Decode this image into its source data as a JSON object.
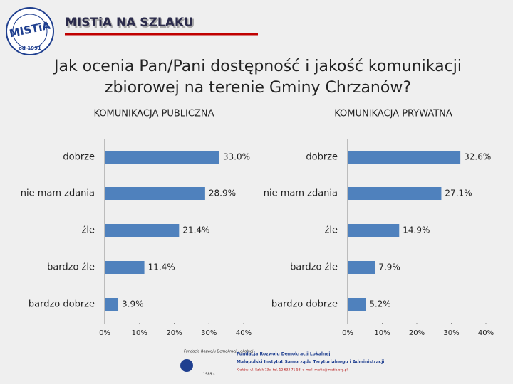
{
  "header": {
    "logo": "MISTiA",
    "logo_year": "od 1991",
    "brand": "MISTiA NA SZLAKU"
  },
  "title_lines": [
    "Jak ocenia Pan/Pani dostępność i jakość komunikacji",
    "zbiorowej na terenie Gminy Chrzanów?"
  ],
  "chart_data": [
    {
      "type": "bar",
      "orientation": "horizontal",
      "title": "KOMUNIKACJA PUBLICZNA",
      "color": "#4f81bd",
      "categories": [
        "dobrze",
        "nie mam zdania",
        "źle",
        "bardzo źle",
        "bardzo dobrze"
      ],
      "values": [
        33.0,
        28.9,
        21.4,
        11.4,
        3.9
      ],
      "value_labels": [
        "33.0%",
        "28.9%",
        "21.4%",
        "11.4%",
        "3.9%"
      ],
      "xlim": [
        0,
        40
      ],
      "xticks": [
        {
          "value": 0,
          "label": "0%"
        },
        {
          "value": 10,
          "label": "10%"
        },
        {
          "value": 20,
          "label": "20%"
        },
        {
          "value": 30,
          "label": "30%"
        },
        {
          "value": 40,
          "label": "40%"
        }
      ]
    },
    {
      "type": "bar",
      "orientation": "horizontal",
      "title": "KOMUNIKACJA PRYWATNA",
      "color": "#4f81bd",
      "categories": [
        "dobrze",
        "nie mam zdania",
        "źle",
        "bardzo źle",
        "bardzo dobrze"
      ],
      "values": [
        32.6,
        27.1,
        14.9,
        7.9,
        5.2
      ],
      "value_labels": [
        "32.6%",
        "27.1%",
        "14.9%",
        "7.9%",
        "5.2%"
      ],
      "xlim": [
        0,
        40
      ],
      "xticks": [
        {
          "value": 0,
          "label": "0%"
        },
        {
          "value": 10,
          "label": "10%"
        },
        {
          "value": 20,
          "label": "20%"
        },
        {
          "value": 30,
          "label": "30%"
        },
        {
          "value": 40,
          "label": "40%"
        }
      ]
    }
  ],
  "footer": {
    "small_logo": "Fundacja Rozwoju Demokracji Lokalnej",
    "small_logo_year": "1989 r.",
    "lines": [
      "Fundacja Rozwoju Demokracji Lokalnej",
      "Małopolski Instytut Samorządu Terytorialnego i Administracji",
      "Kraków, ul. Szlak 73a, tel. 12 633 71 58, e-mail: mistia@mistia.org.pl"
    ]
  }
}
